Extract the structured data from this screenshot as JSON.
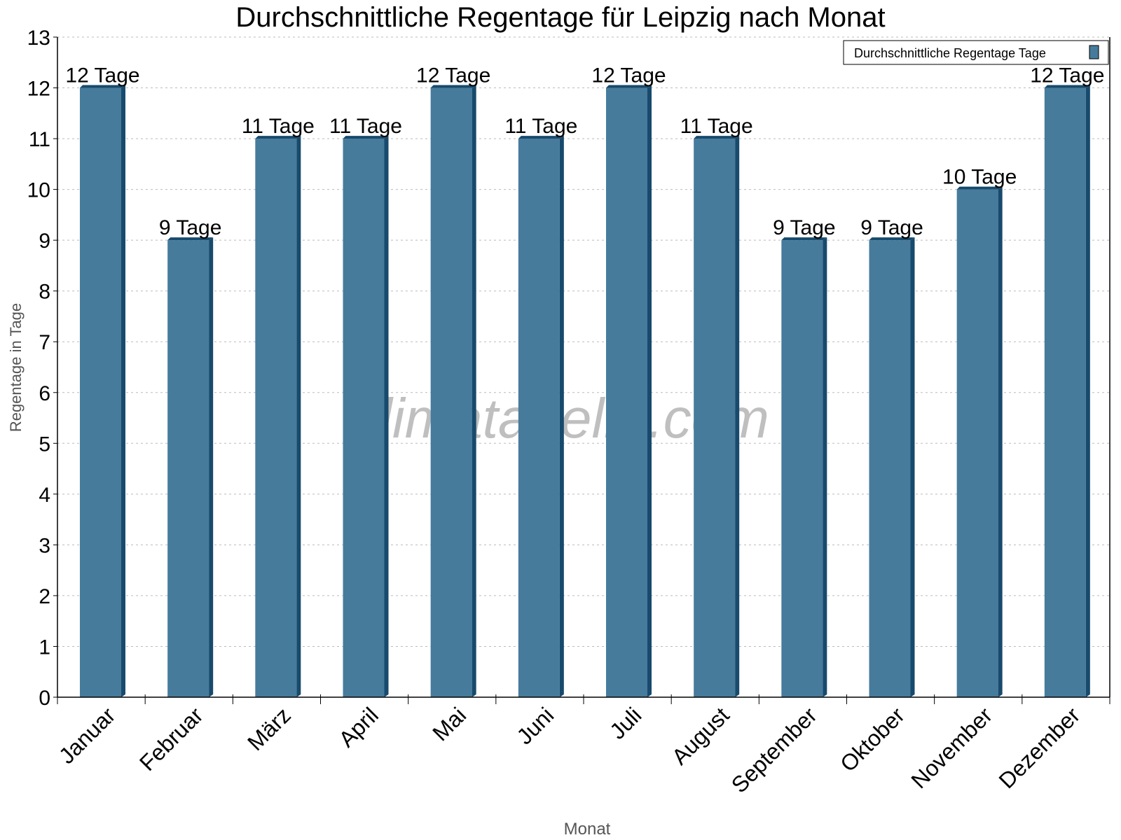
{
  "chart_data": {
    "type": "bar",
    "title": "Durchschnittliche Regentage für Leipzig nach Monat",
    "xlabel": "Monat",
    "ylabel": "Regentage in Tage",
    "categories": [
      "Januar",
      "Februar",
      "März",
      "April",
      "Mai",
      "Juni",
      "Juli",
      "August",
      "September",
      "Oktober",
      "November",
      "Dezember"
    ],
    "series": [
      {
        "name": "Durchschnittliche Regentage Tage",
        "values": [
          12,
          9,
          11,
          11,
          12,
          11,
          12,
          11,
          9,
          9,
          10,
          12
        ],
        "color": "#467b9c",
        "shade_color": "#174a6c"
      }
    ],
    "data_labels": [
      "12 Tage",
      "9 Tage",
      "11 Tage",
      "11 Tage",
      "12 Tage",
      "11 Tage",
      "12 Tage",
      "11 Tage",
      "9 Tage",
      "9 Tage",
      "10 Tage",
      "12 Tage"
    ],
    "ylim": [
      0,
      13
    ],
    "yticks": [
      0,
      1,
      2,
      3,
      4,
      5,
      6,
      7,
      8,
      9,
      10,
      11,
      12,
      13
    ],
    "grid": "horizontal dotted",
    "legend_position": "top-right",
    "watermark": "klimatabelle.com"
  }
}
